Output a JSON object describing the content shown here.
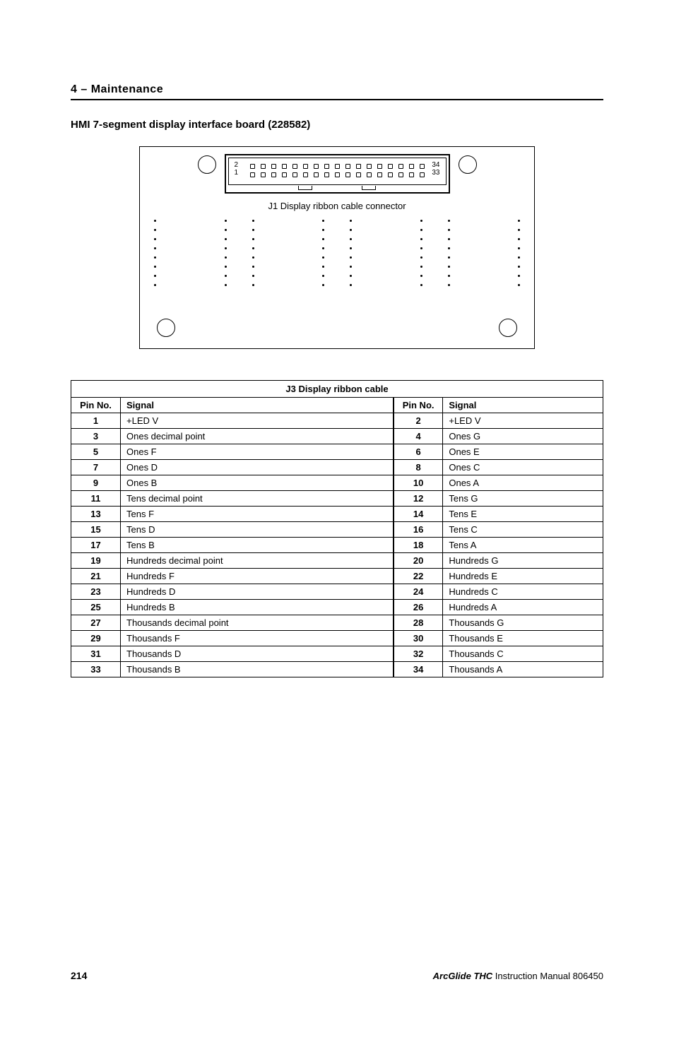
{
  "header": {
    "section": "4  –  Maintenance"
  },
  "subtitle": "HMI 7-segment display interface board (228582)",
  "diagram": {
    "connector_label": "J1 Display ribbon cable connector",
    "pins_per_row": 17,
    "top_left_pin": "2",
    "bottom_left_pin": "1",
    "top_right_pin": "34",
    "bottom_right_pin": "33",
    "dot_rows": 8
  },
  "pinout": {
    "title": "J3 Display ribbon cable",
    "col_headers": [
      "Pin No.",
      "Signal",
      "Pin No.",
      "Signal"
    ],
    "rows": [
      [
        "1",
        "+LED V",
        "2",
        "+LED V"
      ],
      [
        "3",
        "Ones decimal point",
        "4",
        "Ones G"
      ],
      [
        "5",
        "Ones F",
        "6",
        "Ones E"
      ],
      [
        "7",
        "Ones D",
        "8",
        "Ones C"
      ],
      [
        "9",
        "Ones B",
        "10",
        "Ones A"
      ],
      [
        "11",
        "Tens decimal point",
        "12",
        "Tens G"
      ],
      [
        "13",
        "Tens F",
        "14",
        "Tens E"
      ],
      [
        "15",
        "Tens D",
        "16",
        "Tens C"
      ],
      [
        "17",
        "Tens B",
        "18",
        "Tens A"
      ],
      [
        "19",
        "Hundreds decimal point",
        "20",
        "Hundreds G"
      ],
      [
        "21",
        "Hundreds F",
        "22",
        "Hundreds E"
      ],
      [
        "23",
        "Hundreds D",
        "24",
        "Hundreds C"
      ],
      [
        "25",
        "Hundreds B",
        "26",
        "Hundreds A"
      ],
      [
        "27",
        "Thousands decimal point",
        "28",
        "Thousands G"
      ],
      [
        "29",
        "Thousands F",
        "30",
        "Thousands E"
      ],
      [
        "31",
        "Thousands D",
        "32",
        "Thousands C"
      ],
      [
        "33",
        "Thousands B",
        "34",
        "Thousands A"
      ]
    ]
  },
  "footer": {
    "page_number": "214",
    "brand": "ArcGlide THC",
    "doc_title_suffix": "  Instruction Manual  806450"
  },
  "colors": {
    "text": "#000000",
    "background": "#ffffff",
    "border": "#000000"
  }
}
